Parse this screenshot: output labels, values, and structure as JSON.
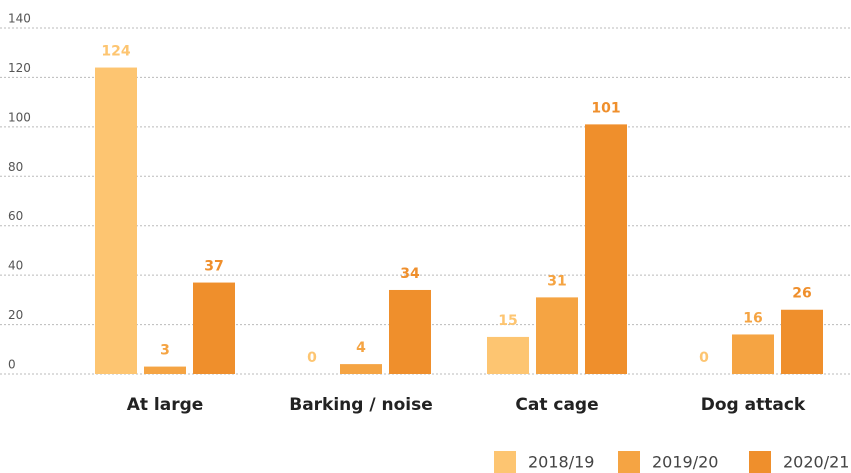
{
  "chart_data": {
    "type": "bar",
    "categories": [
      "At large",
      "Barking / noise",
      "Cat cage",
      "Dog attack"
    ],
    "series": [
      {
        "name": "2018/19",
        "color": "#fdc571",
        "values": [
          124,
          0,
          15,
          0
        ]
      },
      {
        "name": "2019/20",
        "color": "#f5a443",
        "values": [
          3,
          4,
          31,
          16
        ]
      },
      {
        "name": "2020/21",
        "color": "#ef8f2c",
        "values": [
          37,
          34,
          101,
          26
        ]
      }
    ],
    "ylim": [
      0,
      140
    ],
    "yticks": [
      0,
      20,
      40,
      60,
      80,
      100,
      120,
      140
    ],
    "grid": true,
    "legend": "bottom-right"
  }
}
